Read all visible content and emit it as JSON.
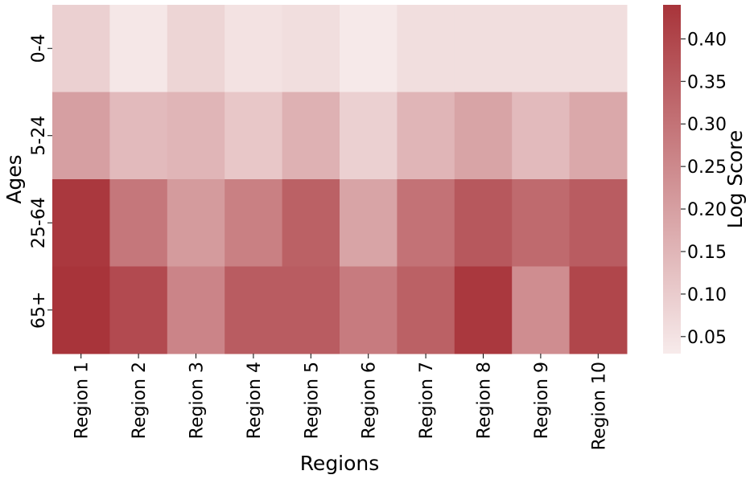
{
  "chart_data": {
    "type": "heatmap",
    "xlabel": "Regions",
    "ylabel": "Ages",
    "colorbar_label": "Log Score",
    "categories": [
      "Region 1",
      "Region 2",
      "Region 3",
      "Region 4",
      "Region 5",
      "Region 6",
      "Region 7",
      "Region 8",
      "Region 9",
      "Region 10"
    ],
    "rows": [
      "0-4",
      "5-24",
      "25-64",
      "65+"
    ],
    "values": [
      [
        0.09,
        0.04,
        0.08,
        0.05,
        0.06,
        0.035,
        0.06,
        0.06,
        0.06,
        0.06
      ],
      [
        0.2,
        0.14,
        0.15,
        0.11,
        0.16,
        0.09,
        0.15,
        0.19,
        0.14,
        0.18
      ],
      [
        0.43,
        0.29,
        0.21,
        0.27,
        0.34,
        0.19,
        0.3,
        0.36,
        0.32,
        0.35
      ],
      [
        0.44,
        0.39,
        0.26,
        0.35,
        0.35,
        0.28,
        0.34,
        0.43,
        0.24,
        0.4
      ]
    ],
    "zlim": [
      0.03,
      0.44
    ],
    "zticks": [
      0.05,
      {
        "value": 0.1,
        "label": "0.10"
      },
      0.15,
      {
        "value": 0.2,
        "label": "0.20"
      },
      0.25,
      {
        "value": 0.3,
        "label": "0.30"
      },
      0.35,
      {
        "value": 0.4,
        "label": "0.40"
      }
    ],
    "colormap": [
      "#f7ebeb",
      "#a8343a"
    ]
  }
}
